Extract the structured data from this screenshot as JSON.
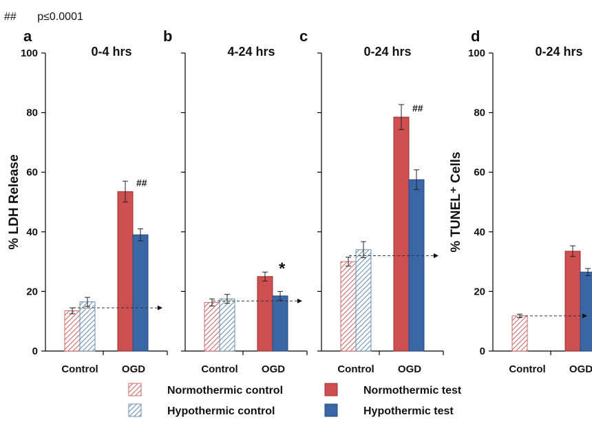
{
  "annotation": {
    "symbol": "##",
    "text": "p≤0.0001"
  },
  "colors": {
    "normo": "#cd4f50",
    "hypo": "#3a66a6",
    "normo_hatch": "#c96a6a",
    "hypo_hatch": "#6d8fb0",
    "axis": "#000000",
    "reference_line": "#333333"
  },
  "legend": [
    {
      "label": "Normothermic control",
      "style": "hatch",
      "color": "normo_hatch"
    },
    {
      "label": "Normothermic test",
      "style": "solid",
      "color": "normo"
    },
    {
      "label": "Hypothermic control",
      "style": "hatch",
      "color": "hypo_hatch"
    },
    {
      "label": "Hypothermic test",
      "style": "solid",
      "color": "hypo"
    }
  ],
  "chart_data": [
    {
      "panel": "a",
      "type": "bar",
      "title": "0-4 hrs",
      "ylabel": "% LDH Release",
      "ylim": [
        0,
        100
      ],
      "yticks": [
        0,
        20,
        40,
        60,
        80,
        100
      ],
      "show_ytick_labels": true,
      "categories": [
        "Control",
        "OGD"
      ],
      "series": [
        {
          "name": "Normothermic control",
          "values": [
            13.5,
            null
          ],
          "errors": [
            1.0,
            null
          ]
        },
        {
          "name": "Hypothermic control",
          "values": [
            16.5,
            null
          ],
          "errors": [
            1.5,
            null
          ]
        },
        {
          "name": "Normothermic test",
          "values": [
            null,
            53.5
          ],
          "errors": [
            null,
            3.5
          ]
        },
        {
          "name": "Hypothermic test",
          "values": [
            null,
            39.0
          ],
          "errors": [
            null,
            2.0
          ]
        }
      ],
      "reference_line": 14.5,
      "annotation": {
        "text": "##",
        "category": "OGD",
        "series": "Normothermic test"
      }
    },
    {
      "panel": "b",
      "type": "bar",
      "title": "4-24 hrs",
      "ylabel": "",
      "ylim": [
        0,
        100
      ],
      "yticks": [
        0,
        20,
        40,
        60,
        80,
        100
      ],
      "show_ytick_labels": false,
      "categories": [
        "Control",
        "OGD"
      ],
      "series": [
        {
          "name": "Normothermic control",
          "values": [
            16.3,
            null
          ],
          "errors": [
            1.2,
            null
          ]
        },
        {
          "name": "Hypothermic control",
          "values": [
            17.5,
            null
          ],
          "errors": [
            1.5,
            null
          ]
        },
        {
          "name": "Normothermic test",
          "values": [
            null,
            25.0
          ],
          "errors": [
            null,
            1.5
          ]
        },
        {
          "name": "Hypothermic test",
          "values": [
            null,
            18.5
          ],
          "errors": [
            null,
            1.5
          ]
        }
      ],
      "reference_line": 16.8,
      "annotation": {
        "text": "*",
        "category": "OGD",
        "series": "Normothermic test"
      }
    },
    {
      "panel": "c",
      "type": "bar",
      "title": "0-24 hrs",
      "ylabel": "",
      "ylim": [
        0,
        100
      ],
      "yticks": [
        0,
        20,
        40,
        60,
        80,
        100
      ],
      "show_ytick_labels": false,
      "categories": [
        "Control",
        "OGD"
      ],
      "series": [
        {
          "name": "Normothermic control",
          "values": [
            30.0,
            null
          ],
          "errors": [
            1.5,
            null
          ]
        },
        {
          "name": "Hypothermic control",
          "values": [
            34.0,
            null
          ],
          "errors": [
            2.7,
            null
          ]
        },
        {
          "name": "Normothermic test",
          "values": [
            null,
            78.5
          ],
          "errors": [
            null,
            4.2
          ]
        },
        {
          "name": "Hypothermic test",
          "values": [
            null,
            57.5
          ],
          "errors": [
            null,
            3.3
          ]
        }
      ],
      "reference_line": 32.0,
      "annotation": {
        "text": "##",
        "category": "OGD",
        "series": "Normothermic test"
      }
    },
    {
      "panel": "d",
      "type": "bar",
      "title": "0-24 hrs",
      "ylabel": "% TUNEL⁺ Cells",
      "ylim": [
        0,
        100
      ],
      "yticks": [
        0,
        20,
        40,
        60,
        80,
        100
      ],
      "show_ytick_labels": true,
      "categories": [
        "Control",
        "OGD"
      ],
      "series": [
        {
          "name": "Normothermic control",
          "values": [
            11.8,
            null
          ],
          "errors": [
            0.6,
            null
          ]
        },
        {
          "name": "Normothermic test",
          "values": [
            null,
            33.5
          ],
          "errors": [
            null,
            1.8
          ]
        },
        {
          "name": "Hypothermic test",
          "values": [
            null,
            26.5
          ],
          "errors": [
            null,
            1.2
          ]
        }
      ],
      "reference_line": 11.8,
      "annotation": {
        "text": "#",
        "category": "OGD",
        "series": "Hypothermic test"
      }
    }
  ]
}
